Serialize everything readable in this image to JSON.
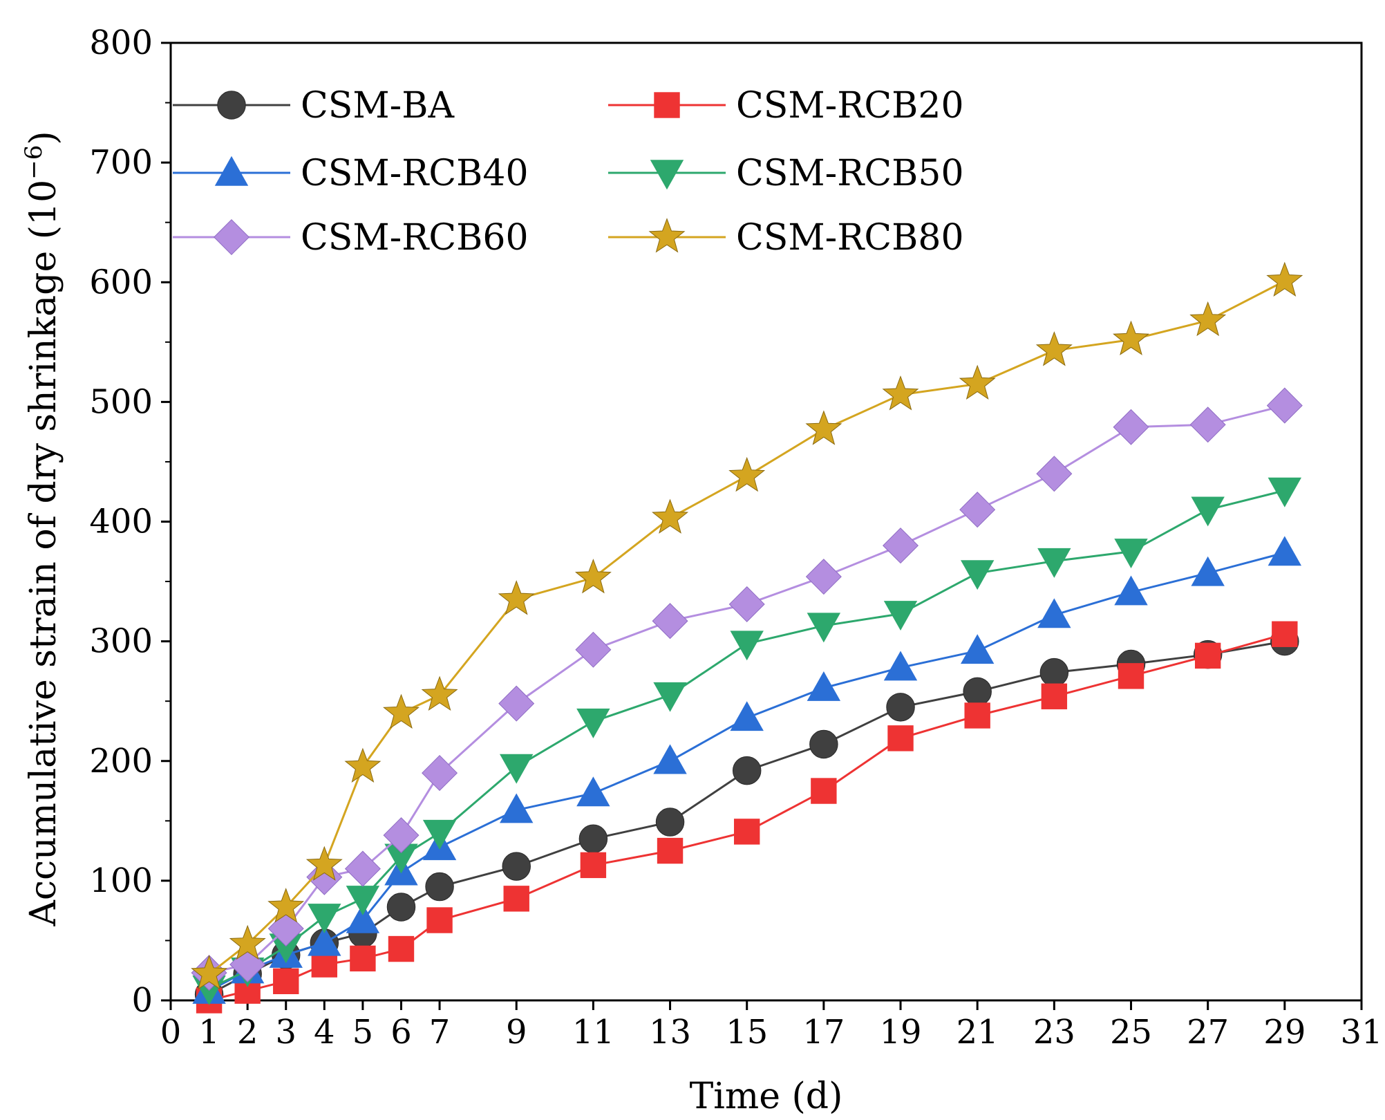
{
  "chart_data": {
    "type": "line",
    "title": "",
    "xlabel": "Time (d)",
    "ylabel_main": "Accumulative strain of dry shrinkage (10",
    "ylabel_sup": "−6",
    "ylabel_close": ")",
    "xlim": [
      0,
      31
    ],
    "ylim": [
      0,
      800
    ],
    "xticks": [
      0,
      1,
      2,
      3,
      4,
      5,
      6,
      7,
      9,
      11,
      13,
      15,
      17,
      19,
      21,
      23,
      25,
      27,
      29,
      31
    ],
    "yticks": [
      0,
      100,
      200,
      300,
      400,
      500,
      600,
      700,
      800
    ],
    "grid": false,
    "legend_position": "top-left",
    "x": [
      1,
      2,
      3,
      4,
      5,
      6,
      7,
      9,
      11,
      13,
      15,
      17,
      19,
      21,
      23,
      25,
      27,
      29
    ],
    "series": [
      {
        "name": "CSM-BA",
        "color": "#404040",
        "marker": "circle",
        "values": [
          5,
          22,
          38,
          48,
          56,
          78,
          95,
          112,
          135,
          149,
          192,
          214,
          245,
          258,
          274,
          281,
          289,
          300
        ]
      },
      {
        "name": "CSM-RCB20",
        "color": "#ee3333",
        "marker": "square",
        "values": [
          0,
          8,
          16,
          30,
          35,
          43,
          67,
          85,
          113,
          125,
          141,
          175,
          219,
          238,
          254,
          271,
          288,
          306
        ]
      },
      {
        "name": "CSM-RCB40",
        "color": "#2b6fd6",
        "marker": "triangle-up",
        "values": [
          8,
          25,
          38,
          48,
          67,
          107,
          128,
          159,
          173,
          200,
          236,
          261,
          278,
          292,
          322,
          341,
          357,
          374
        ]
      },
      {
        "name": "CSM-RCB50",
        "color": "#2da86d",
        "marker": "triangle-down",
        "values": [
          10,
          25,
          45,
          70,
          85,
          120,
          140,
          195,
          233,
          255,
          298,
          313,
          323,
          357,
          367,
          375,
          410,
          426
        ]
      },
      {
        "name": "CSM-RCB60",
        "color": "#b48ee0",
        "marker": "diamond",
        "values": [
          23,
          30,
          60,
          103,
          110,
          138,
          190,
          248,
          293,
          317,
          331,
          354,
          380,
          410,
          440,
          479,
          481,
          497
        ]
      },
      {
        "name": "CSM-RCB80",
        "color": "#d4a520",
        "marker": "star",
        "values": [
          22,
          47,
          78,
          113,
          195,
          240,
          255,
          335,
          353,
          403,
          438,
          477,
          506,
          515,
          543,
          552,
          568,
          601
        ]
      }
    ]
  }
}
